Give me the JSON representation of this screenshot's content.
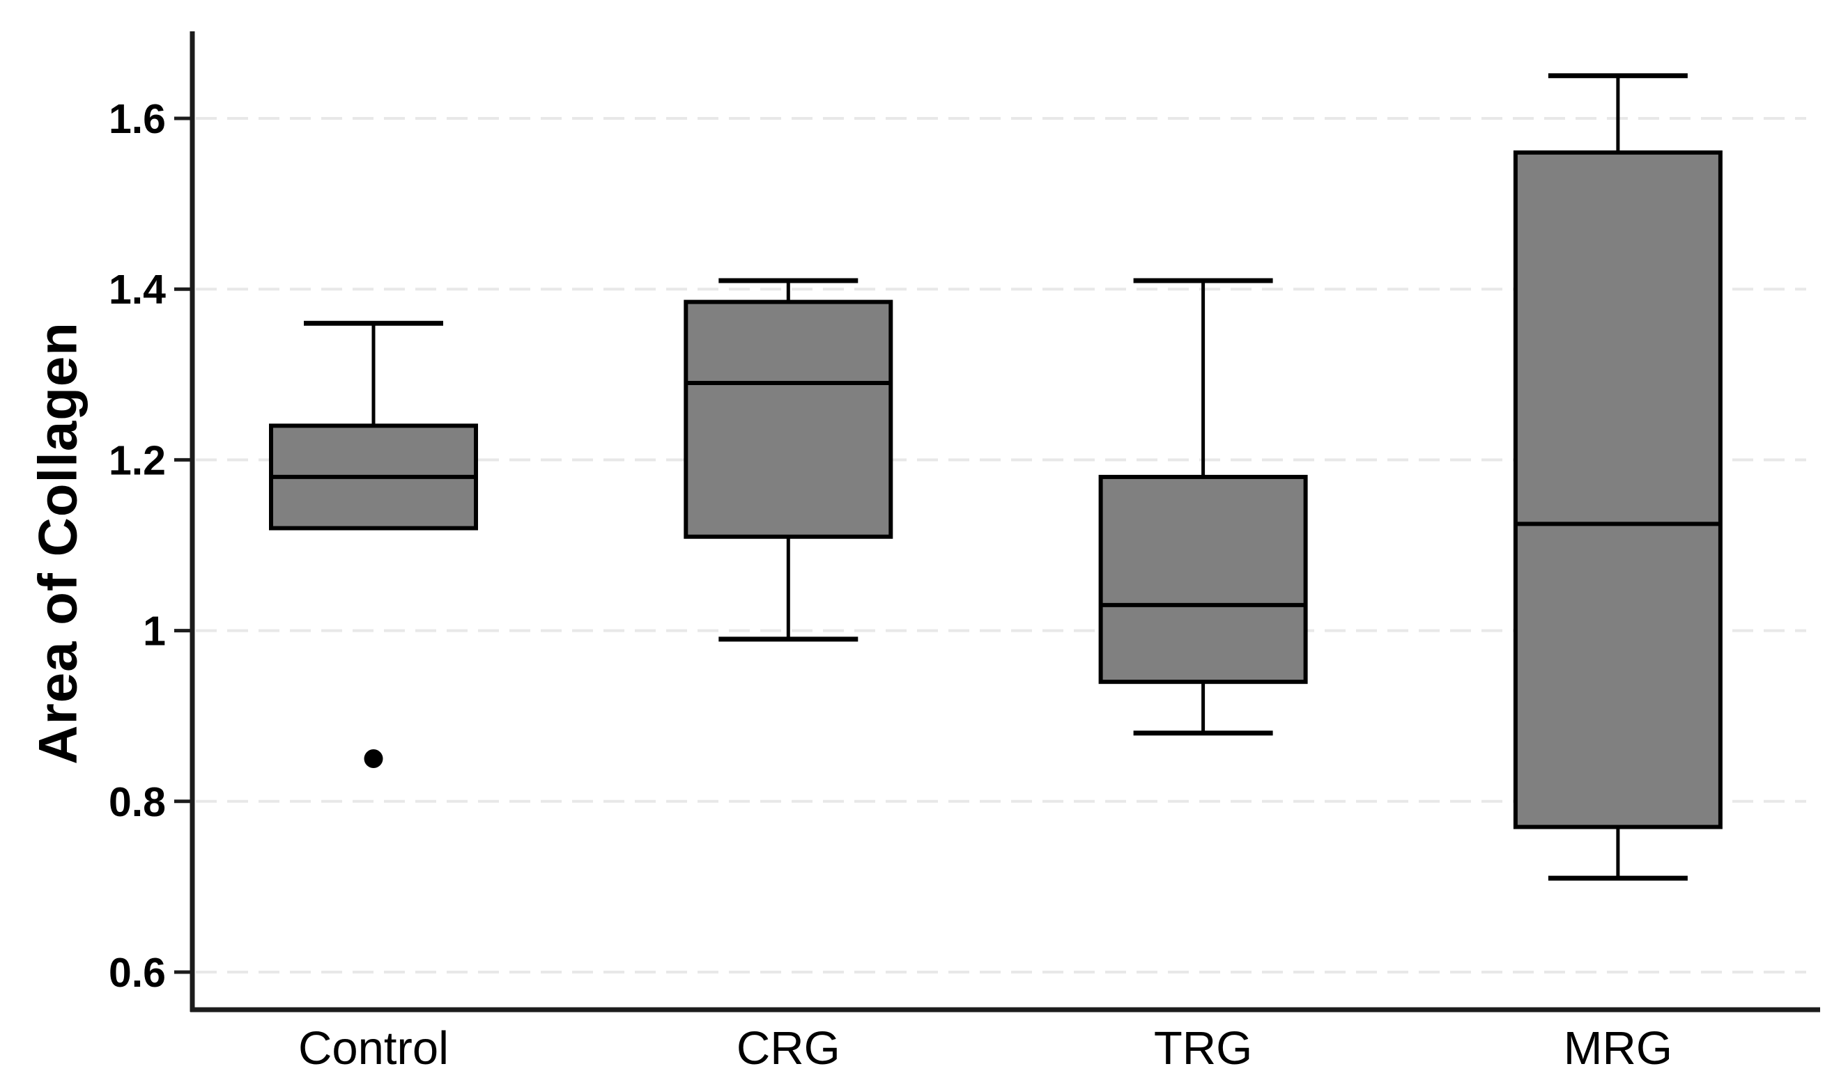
{
  "chart_data": {
    "type": "box",
    "title": "",
    "ylabel": "Area of Collagen",
    "xlabel": "",
    "categories": [
      "Control",
      "CRG",
      "TRG",
      "MRG"
    ],
    "ylim": [
      0.55,
      1.7
    ],
    "grid": "horizontal dashed gridlines at each y tick",
    "legend_position": "none",
    "yticks": [
      {
        "value": 0.6,
        "label": "0.6"
      },
      {
        "value": 0.8,
        "label": "0.8"
      },
      {
        "value": 1.0,
        "label": "1"
      },
      {
        "value": 1.2,
        "label": "1.2"
      },
      {
        "value": 1.4,
        "label": "1.4"
      },
      {
        "value": 1.6,
        "label": "1.6"
      }
    ],
    "series": [
      {
        "name": "Control",
        "whisker_low": 1.12,
        "q1": 1.12,
        "median": 1.18,
        "q3": 1.24,
        "whisker_high": 1.36,
        "outliers": [
          0.85
        ]
      },
      {
        "name": "CRG",
        "whisker_low": 0.99,
        "q1": 1.11,
        "median": 1.29,
        "q3": 1.385,
        "whisker_high": 1.41,
        "outliers": []
      },
      {
        "name": "TRG",
        "whisker_low": 0.88,
        "q1": 0.94,
        "median": 1.03,
        "q3": 1.18,
        "whisker_high": 1.41,
        "outliers": []
      },
      {
        "name": "MRG",
        "whisker_low": 0.71,
        "q1": 0.77,
        "median": 1.125,
        "q3": 1.56,
        "whisker_high": 1.65,
        "outliers": []
      }
    ],
    "colors": {
      "box_fill": "#808080",
      "box_stroke": "#000000",
      "median": "#000000",
      "whisker": "#000000",
      "outlier": "#000000",
      "gridline": "#e8e8e8",
      "axis": "#1c1c1c",
      "text": "#000000",
      "background": "#ffffff"
    }
  }
}
